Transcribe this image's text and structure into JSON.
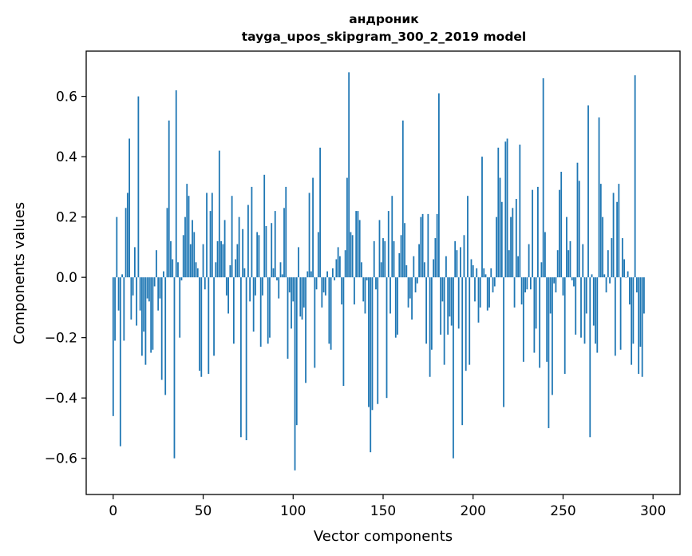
{
  "chart_data": {
    "type": "bar",
    "title": "андроник",
    "subtitle": "tayga_upos_skipgram_300_2_2019 model",
    "xlabel": "Vector components",
    "ylabel": "Components values",
    "xlim": [
      -15,
      315
    ],
    "ylim": [
      -0.72,
      0.75
    ],
    "xticks": [
      0,
      50,
      100,
      150,
      200,
      250,
      300
    ],
    "xtick_labels": [
      "0",
      "50",
      "100",
      "150",
      "200",
      "250",
      "300"
    ],
    "yticks": [
      -0.6,
      -0.4,
      -0.2,
      0.0,
      0.2,
      0.4,
      0.6
    ],
    "ytick_labels": [
      "−0.6",
      "−0.4",
      "−0.2",
      "0.0",
      "0.2",
      "0.4",
      "0.6"
    ],
    "bar_color": "#1f77b4",
    "grid": false,
    "values": [
      -0.46,
      -0.21,
      0.2,
      -0.11,
      -0.56,
      0.01,
      -0.21,
      0.23,
      0.28,
      0.46,
      -0.14,
      -0.06,
      0.1,
      -0.16,
      0.6,
      -0.11,
      -0.26,
      -0.18,
      -0.29,
      -0.07,
      -0.08,
      -0.25,
      -0.24,
      -0.03,
      0.09,
      -0.11,
      -0.07,
      -0.34,
      0.02,
      -0.39,
      0.23,
      0.52,
      0.12,
      0.06,
      -0.6,
      0.62,
      0.05,
      -0.2,
      -0.01,
      0.14,
      0.2,
      0.31,
      0.27,
      0.11,
      0.19,
      0.15,
      0.05,
      0.03,
      -0.31,
      -0.33,
      0.11,
      -0.04,
      0.28,
      -0.32,
      0.22,
      0.28,
      -0.26,
      0.05,
      0.12,
      0.42,
      0.12,
      0.11,
      0.19,
      -0.06,
      -0.12,
      0.04,
      0.27,
      -0.22,
      0.06,
      0.11,
      0.2,
      -0.53,
      0.16,
      0.03,
      -0.54,
      0.24,
      -0.08,
      0.3,
      -0.18,
      -0.06,
      0.15,
      0.14,
      -0.23,
      -0.06,
      0.34,
      0.17,
      -0.22,
      -0.2,
      0.18,
      0.03,
      0.22,
      -0.01,
      -0.07,
      0.05,
      0.01,
      0.23,
      0.3,
      -0.27,
      -0.05,
      -0.17,
      -0.08,
      -0.64,
      -0.49,
      0.1,
      -0.13,
      -0.14,
      -0.1,
      -0.35,
      0.02,
      0.28,
      0.02,
      0.33,
      -0.3,
      -0.04,
      0.15,
      0.43,
      -0.1,
      -0.05,
      -0.06,
      0.02,
      -0.22,
      -0.24,
      0.03,
      -0.01,
      0.06,
      0.1,
      0.07,
      -0.09,
      -0.36,
      0.09,
      0.33,
      0.68,
      0.15,
      0.14,
      -0.09,
      0.22,
      0.22,
      0.19,
      0.05,
      -0.08,
      -0.12,
      -0.01,
      -0.43,
      -0.58,
      -0.44,
      0.12,
      -0.04,
      -0.42,
      0.19,
      0.05,
      0.13,
      0.12,
      -0.4,
      0.22,
      -0.12,
      0.27,
      0.12,
      -0.2,
      -0.19,
      0.08,
      0.14,
      0.52,
      0.18,
      0.04,
      -0.1,
      -0.07,
      -0.14,
      0.07,
      -0.05,
      -0.02,
      0.11,
      0.2,
      0.21,
      0.05,
      -0.22,
      0.21,
      -0.33,
      -0.24,
      0.06,
      0.13,
      0.21,
      0.61,
      -0.19,
      -0.08,
      -0.29,
      0.07,
      -0.19,
      -0.13,
      -0.16,
      -0.6,
      0.12,
      0.09,
      -0.17,
      0.1,
      -0.49,
      0.14,
      -0.31,
      0.27,
      -0.29,
      0.06,
      0.04,
      -0.08,
      0.03,
      -0.15,
      -0.1,
      0.4,
      0.03,
      0.01,
      -0.11,
      -0.1,
      0.03,
      -0.05,
      -0.03,
      0.2,
      0.43,
      0.33,
      0.25,
      -0.43,
      0.45,
      0.46,
      0.09,
      0.2,
      0.23,
      -0.1,
      0.26,
      0.07,
      0.44,
      -0.09,
      -0.28,
      -0.05,
      -0.04,
      0.11,
      -0.04,
      0.29,
      -0.25,
      -0.17,
      0.3,
      -0.3,
      0.05,
      0.66,
      0.15,
      -0.28,
      -0.5,
      -0.12,
      -0.39,
      -0.02,
      -0.05,
      0.09,
      0.29,
      0.35,
      -0.06,
      -0.32,
      0.2,
      0.09,
      0.12,
      -0.01,
      -0.03,
      -0.19,
      0.38,
      0.32,
      -0.2,
      0.11,
      -0.22,
      -0.12,
      0.57,
      -0.53,
      0.01,
      -0.16,
      -0.22,
      -0.25,
      0.53,
      0.31,
      0.2,
      0.01,
      -0.05,
      0.09,
      -0.02,
      0.13,
      0.28,
      -0.26,
      0.25,
      0.31,
      -0.24,
      0.13,
      0.06,
      0.0,
      0.02,
      -0.09,
      -0.29,
      -0.22,
      0.67,
      -0.05,
      -0.32,
      -0.23,
      -0.33,
      -0.12
    ]
  }
}
